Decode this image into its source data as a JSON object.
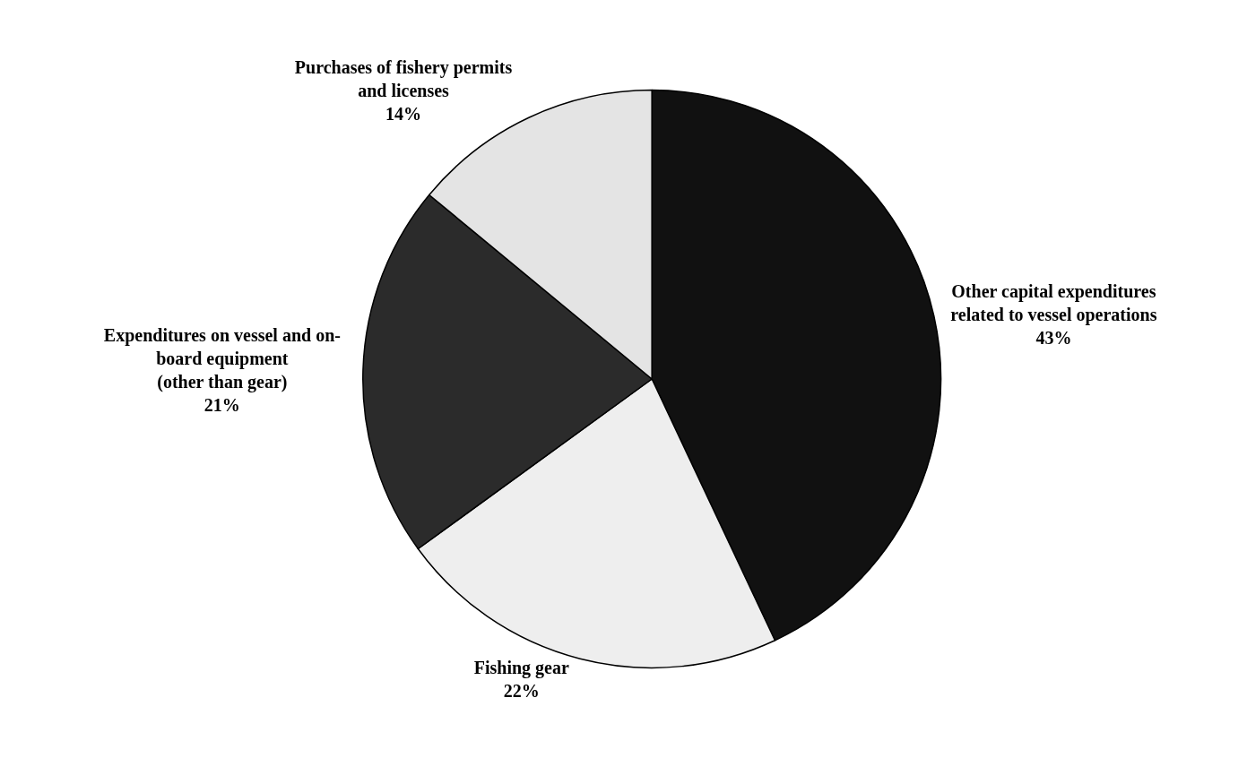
{
  "chart_data": {
    "type": "pie",
    "categories": [
      "Other capital expenditures\nrelated to vessel operations",
      "Fishing gear",
      "Expenditures on vessel and on-\nboard equipment\n(other than gear)",
      "Purchases of fishery permits\nand licenses"
    ],
    "values": [
      43,
      22,
      21,
      14
    ],
    "colors": [
      "#111111",
      "#eeeeee",
      "#2b2b2b",
      "#e4e4e4"
    ],
    "value_labels": [
      "43%",
      "22%",
      "21%",
      "14%"
    ],
    "legend": false
  }
}
